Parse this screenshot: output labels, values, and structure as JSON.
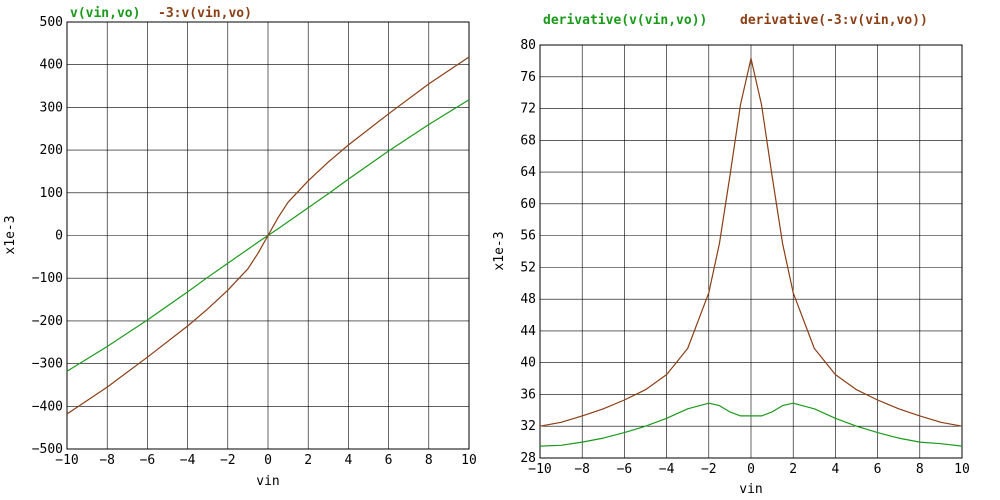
{
  "chart_data": [
    {
      "type": "line",
      "title": "",
      "xlabel": "vin",
      "ylabel": "x1e-3",
      "xlim": [
        -10,
        10
      ],
      "ylim": [
        -500,
        500
      ],
      "x_ticks": [
        -10,
        -8,
        -6,
        -4,
        -2,
        0,
        2,
        4,
        6,
        8,
        10
      ],
      "y_ticks": [
        -500,
        -400,
        -300,
        -200,
        -100,
        0,
        100,
        200,
        300,
        400,
        500
      ],
      "x_tick_labels": [
        "−10",
        "−8",
        "−6",
        "−4",
        "−2",
        "0",
        "2",
        "4",
        "6",
        "8",
        "10"
      ],
      "y_tick_labels": [
        "−500",
        "−400",
        "−300",
        "−200",
        "−100",
        "0",
        "100",
        "200",
        "300",
        "400",
        "500"
      ],
      "grid": true,
      "x": [
        -10,
        -8,
        -6,
        -4,
        -3,
        -2,
        -1,
        -0.5,
        0,
        0.5,
        1,
        2,
        3,
        4,
        6,
        8,
        10
      ],
      "series": [
        {
          "name": "v(vin,vo)",
          "color": "#1a9a1a",
          "values": [
            -318,
            -260,
            -198,
            -132,
            -98,
            -65,
            -32,
            -16,
            0,
            16,
            32,
            65,
            98,
            132,
            198,
            260,
            318
          ]
        },
        {
          "name": "-3:v(vin,vo)",
          "color": "#8b3e14",
          "values": [
            -418,
            -355,
            -285,
            -212,
            -172,
            -128,
            -78,
            -42,
            0,
            42,
            78,
            128,
            172,
            212,
            285,
            355,
            418
          ]
        }
      ]
    },
    {
      "type": "line",
      "title": "",
      "xlabel": "vin",
      "ylabel": "x1e-3",
      "xlim": [
        -10,
        10
      ],
      "ylim": [
        28,
        80
      ],
      "x_ticks": [
        -10,
        -8,
        -6,
        -4,
        -2,
        0,
        2,
        4,
        6,
        8,
        10
      ],
      "y_ticks": [
        28,
        32,
        36,
        40,
        44,
        48,
        52,
        56,
        60,
        64,
        68,
        72,
        76,
        80
      ],
      "x_tick_labels": [
        "−10",
        "−8",
        "−6",
        "−4",
        "−2",
        "0",
        "2",
        "4",
        "6",
        "8",
        "10"
      ],
      "y_tick_labels": [
        "28",
        "32",
        "36",
        "40",
        "44",
        "48",
        "52",
        "56",
        "60",
        "64",
        "68",
        "72",
        "76",
        "80"
      ],
      "grid": true,
      "x": [
        -10,
        -9,
        -8,
        -7,
        -6,
        -5,
        -4,
        -3,
        -2,
        -1.5,
        -1,
        -0.5,
        0,
        0.5,
        1,
        1.5,
        2,
        3,
        4,
        5,
        6,
        7,
        8,
        9,
        10
      ],
      "series": [
        {
          "name": "derivative(v(vin,vo))",
          "color": "#1a9a1a",
          "values": [
            29.5,
            29.6,
            30.0,
            30.5,
            31.2,
            32.0,
            33.0,
            34.2,
            34.9,
            34.6,
            33.8,
            33.3,
            33.3,
            33.3,
            33.8,
            34.6,
            34.9,
            34.2,
            33.0,
            32.0,
            31.2,
            30.5,
            30.0,
            29.8,
            29.5
          ]
        },
        {
          "name": "derivative(-3:v(vin,vo))",
          "color": "#8b3e14",
          "values": [
            32.0,
            32.5,
            33.3,
            34.2,
            35.3,
            36.6,
            38.5,
            41.8,
            48.8,
            55.0,
            63.5,
            72.5,
            78.3,
            72.5,
            63.5,
            55.0,
            48.8,
            41.8,
            38.5,
            36.6,
            35.3,
            34.2,
            33.3,
            32.5,
            32.0
          ]
        }
      ]
    }
  ]
}
